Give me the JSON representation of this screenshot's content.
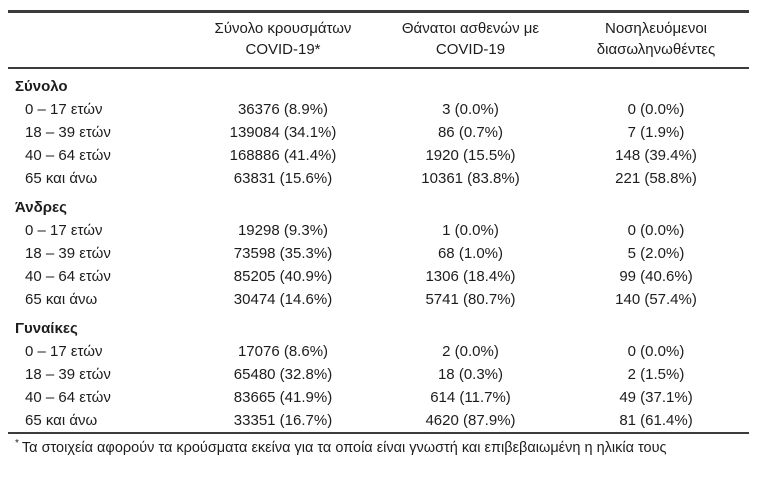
{
  "table": {
    "columns": [
      {
        "line1": "Σύνολο κρουσμάτων",
        "line2": "COVID-19*"
      },
      {
        "line1": "Θάνατοι ασθενών με",
        "line2": "COVID-19"
      },
      {
        "line1": "Νοσηλευόμενοι",
        "line2": "διασωληνωθέντες"
      }
    ],
    "sections": [
      {
        "title": "Σύνολο",
        "rows": [
          {
            "label": "0 – 17 ετών",
            "cases": "36376 (8.9%)",
            "deaths": "3 (0.0%)",
            "intubated": "0 (0.0%)"
          },
          {
            "label": "18 – 39 ετών",
            "cases": "139084 (34.1%)",
            "deaths": "86 (0.7%)",
            "intubated": "7 (1.9%)"
          },
          {
            "label": "40 – 64 ετών",
            "cases": "168886 (41.4%)",
            "deaths": "1920 (15.5%)",
            "intubated": "148 (39.4%)"
          },
          {
            "label": "65 και άνω",
            "cases": "63831 (15.6%)",
            "deaths": "10361 (83.8%)",
            "intubated": "221 (58.8%)"
          }
        ]
      },
      {
        "title": "Άνδρες",
        "rows": [
          {
            "label": "0 – 17 ετών",
            "cases": "19298 (9.3%)",
            "deaths": "1 (0.0%)",
            "intubated": "0 (0.0%)"
          },
          {
            "label": "18 – 39 ετών",
            "cases": "73598 (35.3%)",
            "deaths": "68 (1.0%)",
            "intubated": "5 (2.0%)"
          },
          {
            "label": "40 – 64 ετών",
            "cases": "85205 (40.9%)",
            "deaths": "1306 (18.4%)",
            "intubated": "99 (40.6%)"
          },
          {
            "label": "65 και άνω",
            "cases": "30474 (14.6%)",
            "deaths": "5741 (80.7%)",
            "intubated": "140 (57.4%)"
          }
        ]
      },
      {
        "title": "Γυναίκες",
        "rows": [
          {
            "label": "0 – 17 ετών",
            "cases": "17076 (8.6%)",
            "deaths": "2 (0.0%)",
            "intubated": "0 (0.0%)"
          },
          {
            "label": "18 – 39 ετών",
            "cases": "65480 (32.8%)",
            "deaths": "18 (0.3%)",
            "intubated": "2 (1.5%)"
          },
          {
            "label": "40 – 64 ετών",
            "cases": "83665 (41.9%)",
            "deaths": "614 (11.7%)",
            "intubated": "49 (37.1%)"
          },
          {
            "label": "65 και άνω",
            "cases": "33351 (16.7%)",
            "deaths": "4620 (87.9%)",
            "intubated": "81 (61.4%)"
          }
        ]
      }
    ],
    "footnote": {
      "marker": "*",
      "text": "Τα στοιχεία αφορούν τα κρούσματα εκείνα για τα οποία είναι γνωστή και επιβεβαιωμένη η ηλικία τους"
    }
  },
  "colors": {
    "text": "#1d1d1d",
    "rule": "#3b3b3b"
  }
}
